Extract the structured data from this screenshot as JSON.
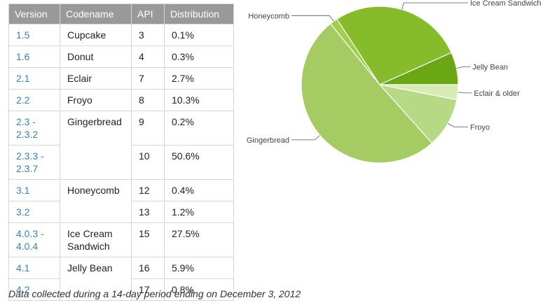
{
  "table": {
    "headers": [
      "Version",
      "Codename",
      "API",
      "Distribution"
    ],
    "rows": [
      {
        "version": [
          "1.5"
        ],
        "codename": [
          "Cupcake"
        ],
        "codename_rows": 1,
        "api": "3",
        "distribution": "0.1%"
      },
      {
        "version": [
          "1.6"
        ],
        "codename": [
          "Donut"
        ],
        "codename_rows": 1,
        "api": "4",
        "distribution": "0.3%"
      },
      {
        "version": [
          "2.1"
        ],
        "codename": [
          "Eclair"
        ],
        "codename_rows": 1,
        "api": "7",
        "distribution": "2.7%"
      },
      {
        "version": [
          "2.2"
        ],
        "codename": [
          "Froyo"
        ],
        "codename_rows": 1,
        "api": "8",
        "distribution": "10.3%"
      },
      {
        "version": [
          "2.3 -",
          "2.3.2"
        ],
        "codename": [
          "Gingerbread"
        ],
        "codename_rows": 2,
        "api": "9",
        "distribution": "0.2%"
      },
      {
        "version": [
          "2.3.3 -",
          "2.3.7"
        ],
        "codename": null,
        "api": "10",
        "distribution": "50.6%"
      },
      {
        "version": [
          "3.1"
        ],
        "codename": [
          "Honeycomb"
        ],
        "codename_rows": 2,
        "api": "12",
        "distribution": "0.4%"
      },
      {
        "version": [
          "3.2"
        ],
        "codename": null,
        "api": "13",
        "distribution": "1.2%"
      },
      {
        "version": [
          "4.0.3 -",
          "4.0.4"
        ],
        "codename": [
          "Ice Cream",
          "Sandwich"
        ],
        "codename_rows": 1,
        "api": "15",
        "distribution": "27.5%"
      },
      {
        "version": [
          "4.1"
        ],
        "codename": [
          "Jelly Bean"
        ],
        "codename_rows": 2,
        "api": "16",
        "distribution": "5.9%"
      },
      {
        "version": [
          "4.2"
        ],
        "codename": null,
        "api": "17",
        "distribution": "0.8%"
      }
    ]
  },
  "caption": "Data collected during a 14-day period ending on December 3, 2012",
  "chart_data": {
    "type": "pie",
    "start_angle_deg": 0,
    "direction": "clockwise",
    "slices": [
      {
        "label": "Eclair & older",
        "value": 3.1,
        "color": "#d8ebb4"
      },
      {
        "label": "Froyo",
        "value": 10.3,
        "color": "#b6d986"
      },
      {
        "label": "Gingerbread",
        "value": 50.8,
        "color": "#a5cc63"
      },
      {
        "label": "Honeycomb",
        "value": 1.6,
        "color": "#9fd04c"
      },
      {
        "label": "Ice Cream Sandwich",
        "value": 27.5,
        "color": "#86bb2c"
      },
      {
        "label": "Jelly Bean",
        "value": 6.7,
        "color": "#69a714"
      }
    ]
  }
}
